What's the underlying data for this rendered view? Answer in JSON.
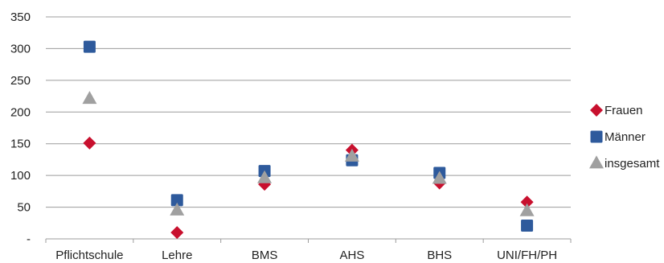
{
  "chart_data": {
    "type": "scatter",
    "title": "",
    "xlabel": "",
    "ylabel": "",
    "categories": [
      "Pflichtschule",
      "Lehre",
      "BMS",
      "AHS",
      "BHS",
      "UNI/FH/PH"
    ],
    "ylim": [
      0,
      350
    ],
    "yticks": [
      {
        "value": 0,
        "label": "-"
      },
      {
        "value": 50,
        "label": "50"
      },
      {
        "value": 100,
        "label": "100"
      },
      {
        "value": 150,
        "label": "150"
      },
      {
        "value": 200,
        "label": "200"
      },
      {
        "value": 250,
        "label": "250"
      },
      {
        "value": 300,
        "label": "300"
      },
      {
        "value": 350,
        "label": "350"
      }
    ],
    "grid": true,
    "legend_position": "right",
    "series": [
      {
        "name": "Frauen",
        "marker": "diamond",
        "color": "#C8102E",
        "values": [
          151,
          10,
          86,
          140,
          88,
          58
        ]
      },
      {
        "name": "Männer",
        "marker": "square",
        "color": "#2E5A9C",
        "values": [
          303,
          61,
          107,
          124,
          104,
          21
        ]
      },
      {
        "name": "insgesamt",
        "marker": "triangle",
        "color": "#A0A0A0",
        "values": [
          221,
          45,
          96,
          130,
          95,
          44
        ]
      }
    ]
  }
}
